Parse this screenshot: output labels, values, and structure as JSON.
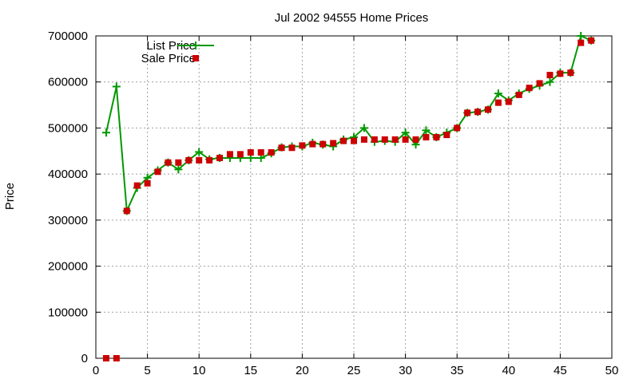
{
  "chart_data": {
    "type": "line",
    "title": "Jul 2002 94555 Home Prices",
    "xlabel": "",
    "ylabel": "Price",
    "xlim": [
      0,
      50
    ],
    "ylim": [
      0,
      700000
    ],
    "x_ticks": [
      0,
      5,
      10,
      15,
      20,
      25,
      30,
      35,
      40,
      45,
      50
    ],
    "y_ticks": [
      0,
      100000,
      200000,
      300000,
      400000,
      500000,
      600000,
      700000
    ],
    "grid": true,
    "legend_position": "top-left",
    "series": [
      {
        "name": "List Price",
        "style": "line+plus",
        "color": "#009900",
        "x": [
          1,
          2,
          3,
          4,
          5,
          6,
          7,
          8,
          9,
          10,
          11,
          12,
          13,
          14,
          15,
          16,
          17,
          18,
          19,
          20,
          21,
          22,
          23,
          24,
          25,
          26,
          27,
          28,
          29,
          30,
          31,
          32,
          33,
          34,
          35,
          36,
          37,
          38,
          39,
          40,
          41,
          42,
          43,
          44,
          45,
          46,
          47,
          48
        ],
        "values": [
          490000,
          590000,
          320000,
          370000,
          392000,
          408000,
          425000,
          410000,
          430000,
          448000,
          432000,
          435000,
          435000,
          435000,
          435000,
          435000,
          445000,
          458000,
          460000,
          460000,
          468000,
          464000,
          460000,
          475000,
          480000,
          500000,
          470000,
          472000,
          470000,
          490000,
          464000,
          495000,
          480000,
          490000,
          500000,
          533000,
          535000,
          540000,
          575000,
          560000,
          575000,
          585000,
          592000,
          600000,
          620000,
          620000,
          700000,
          690000
        ]
      },
      {
        "name": "Sale Price",
        "style": "square",
        "color": "#cc0000",
        "x": [
          1,
          2,
          3,
          4,
          5,
          6,
          7,
          8,
          9,
          10,
          11,
          12,
          13,
          14,
          15,
          16,
          17,
          18,
          19,
          20,
          21,
          22,
          23,
          24,
          25,
          26,
          27,
          28,
          29,
          30,
          31,
          32,
          33,
          34,
          35,
          36,
          37,
          38,
          39,
          40,
          41,
          42,
          43,
          44,
          45,
          46,
          47,
          48
        ],
        "values": [
          0,
          0,
          320000,
          375000,
          380000,
          405000,
          425000,
          425000,
          430000,
          430000,
          430000,
          435000,
          443000,
          443000,
          447000,
          447000,
          447000,
          457000,
          457000,
          462000,
          465000,
          465000,
          467000,
          472000,
          472000,
          475000,
          475000,
          475000,
          475000,
          475000,
          475000,
          480000,
          480000,
          485000,
          500000,
          533000,
          535000,
          540000,
          555000,
          557000,
          572000,
          587000,
          597000,
          615000,
          618000,
          620000,
          685000,
          690000
        ]
      }
    ]
  }
}
